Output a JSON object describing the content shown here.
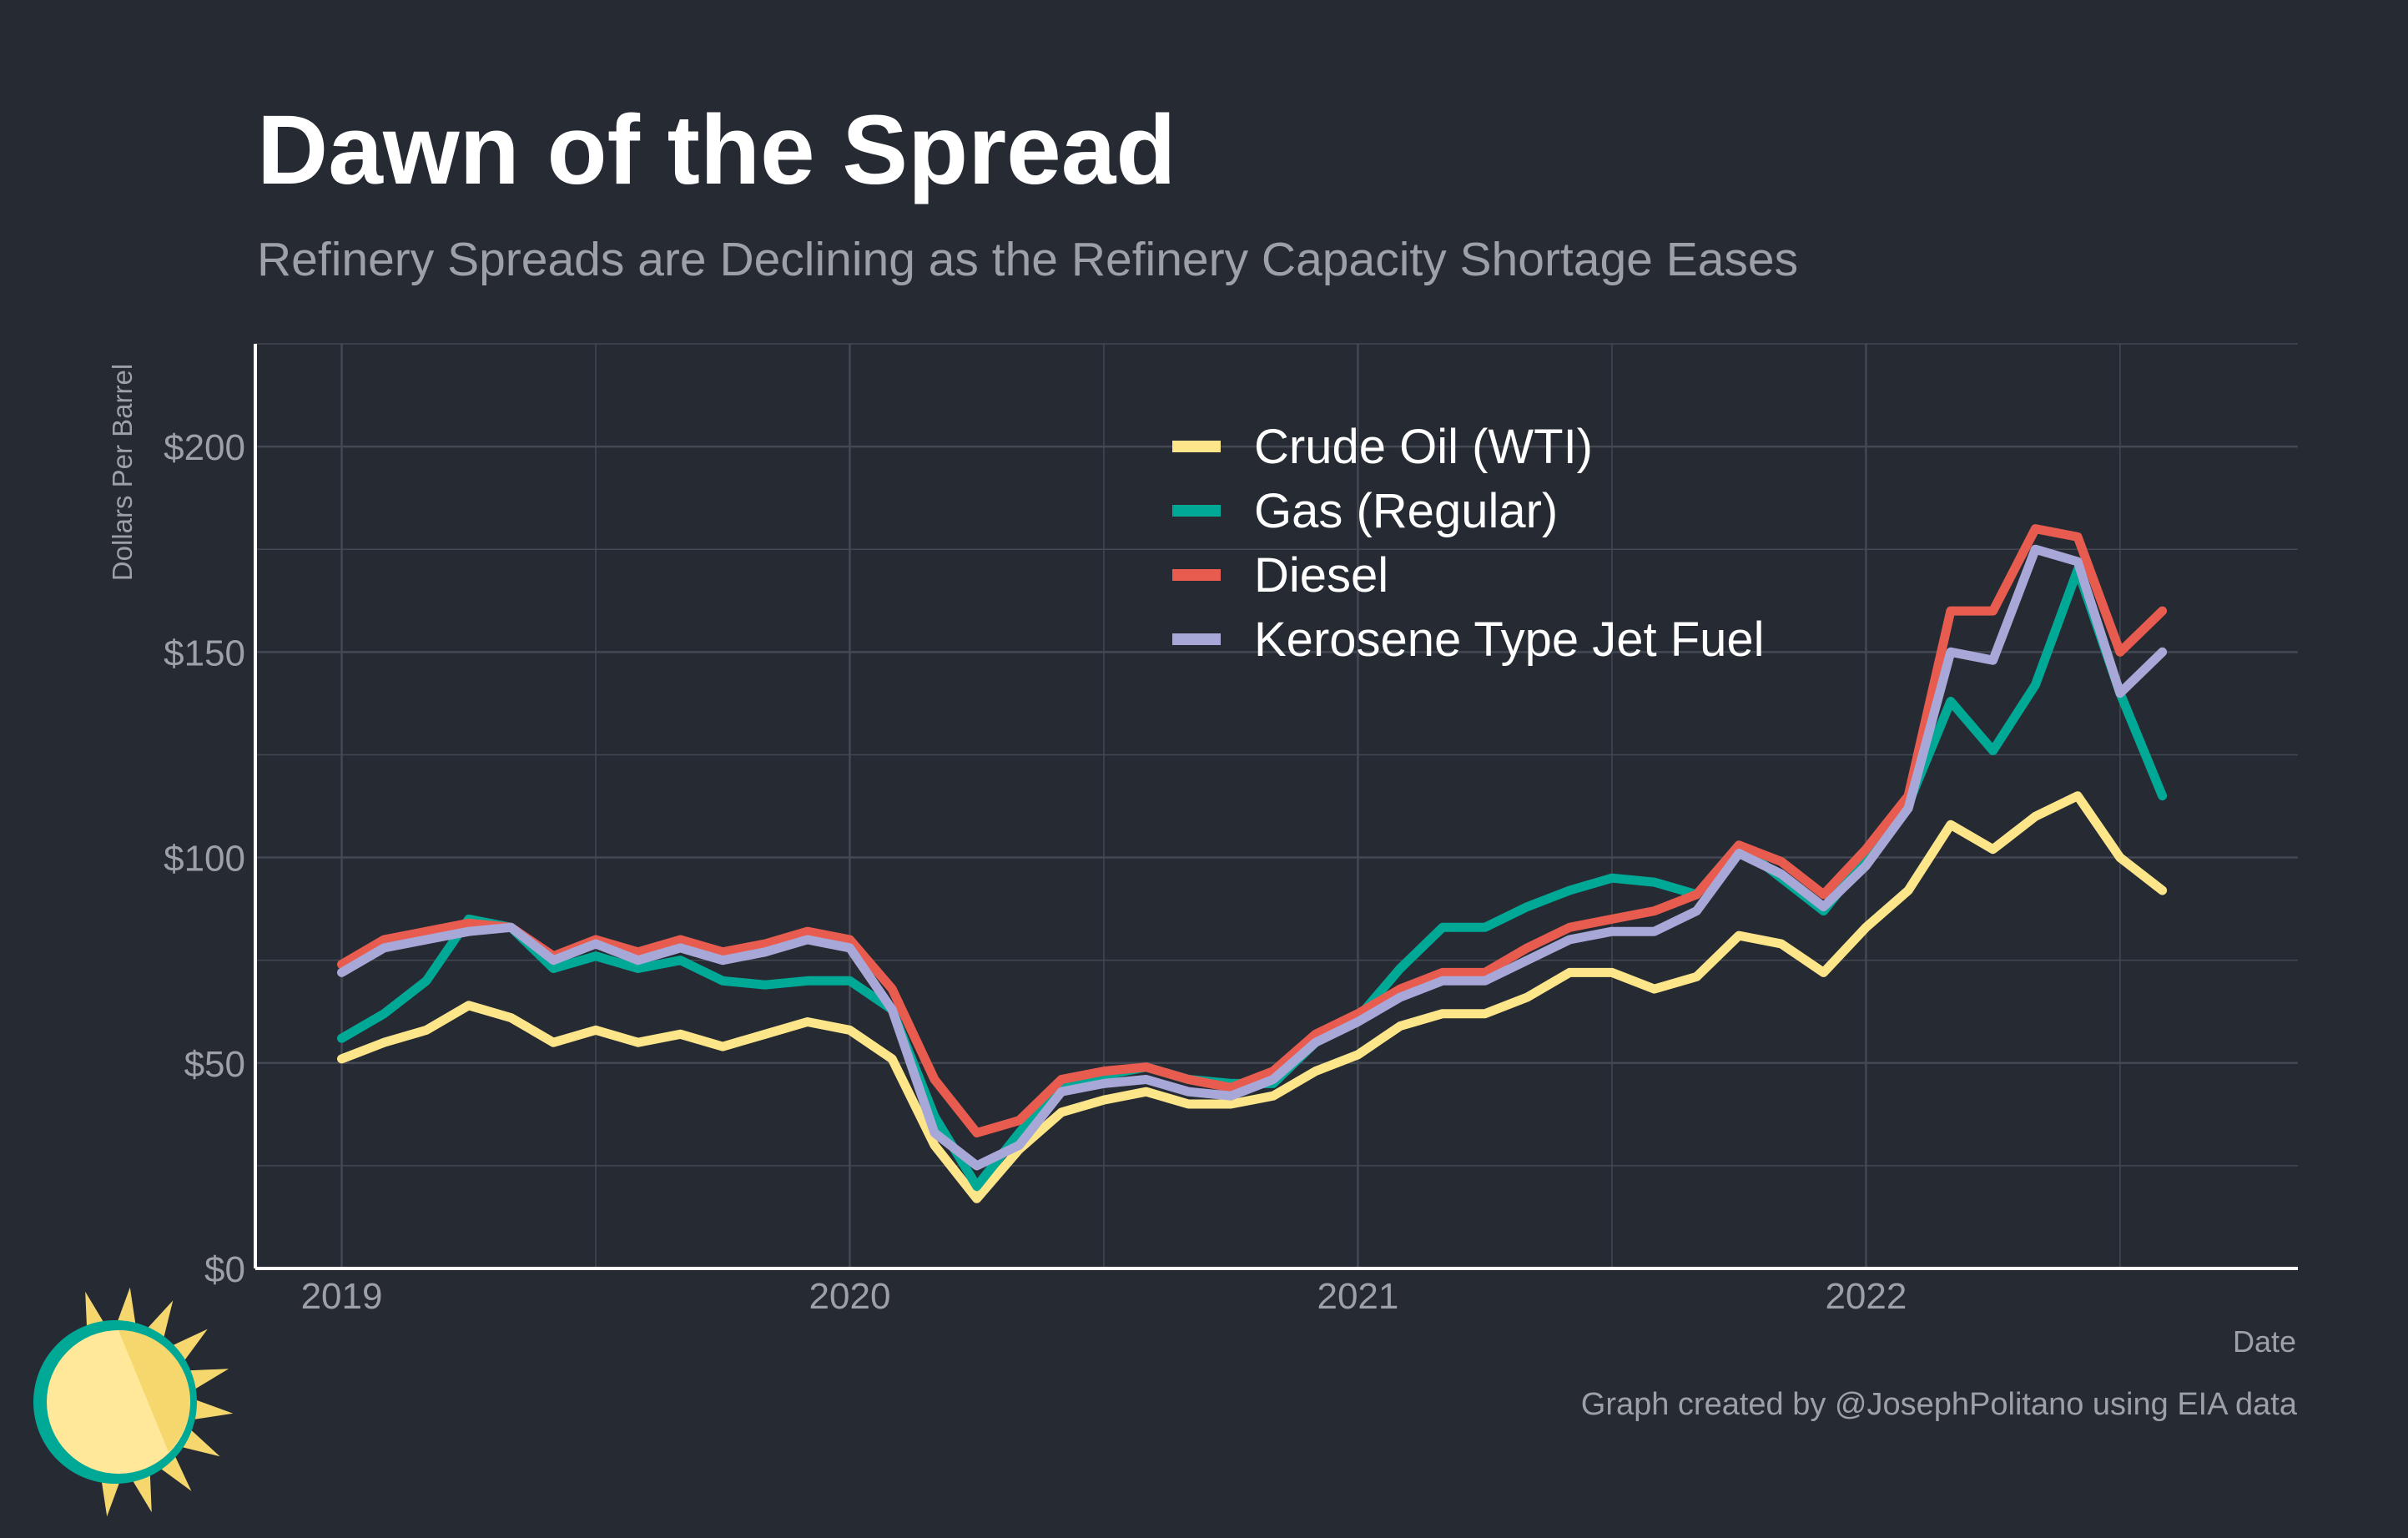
{
  "title": "Dawn of the Spread",
  "subtitle": "Refinery Spreads are Declining as the Refinery Capacity Shortage Eases",
  "caption": "Graph created by @JosephPolitano using EIA data",
  "colors": {
    "background": "#252a33",
    "grid": "#434853",
    "axis": "#ffffff",
    "muted_text": "#9da0a6"
  },
  "logo_icon": "sun-icon",
  "chart_data": {
    "type": "line",
    "title": "Dawn of the Spread",
    "subtitle": "Refinery Spreads are Declining as the Refinery Capacity Shortage Eases",
    "xlabel": "Date",
    "ylabel": "Dollars Per Barrel",
    "x_ticks": [
      "2019",
      "2020",
      "2021",
      "2022"
    ],
    "y_ticks": [
      "$0",
      "$50",
      "$100",
      "$150",
      "$200"
    ],
    "y_tick_values": [
      0,
      50,
      100,
      150,
      200
    ],
    "xlim": [
      2018.83,
      2022.85
    ],
    "ylim": [
      0,
      225
    ],
    "grid": true,
    "legend_position": "top-center",
    "x": [
      "2019-01",
      "2019-02",
      "2019-03",
      "2019-04",
      "2019-05",
      "2019-06",
      "2019-07",
      "2019-08",
      "2019-09",
      "2019-10",
      "2019-11",
      "2019-12",
      "2020-01",
      "2020-02",
      "2020-03",
      "2020-04",
      "2020-05",
      "2020-06",
      "2020-07",
      "2020-08",
      "2020-09",
      "2020-10",
      "2020-11",
      "2020-12",
      "2021-01",
      "2021-02",
      "2021-03",
      "2021-04",
      "2021-05",
      "2021-06",
      "2021-07",
      "2021-08",
      "2021-09",
      "2021-10",
      "2021-11",
      "2021-12",
      "2022-01",
      "2022-02",
      "2022-03",
      "2022-04",
      "2022-05",
      "2022-06",
      "2022-07",
      "2022-08"
    ],
    "series": [
      {
        "name": "Crude Oil (WTI)",
        "color": "#fde68a",
        "values": [
          51,
          55,
          58,
          64,
          61,
          55,
          58,
          55,
          57,
          54,
          57,
          60,
          58,
          51,
          30,
          17,
          29,
          38,
          41,
          43,
          40,
          40,
          42,
          48,
          52,
          59,
          62,
          62,
          66,
          72,
          72,
          68,
          71,
          81,
          79,
          72,
          83,
          92,
          108,
          102,
          110,
          115,
          100,
          92
        ]
      },
      {
        "name": "Gas (Regular)",
        "color": "#00a896",
        "values": [
          56,
          62,
          70,
          85,
          83,
          73,
          76,
          73,
          75,
          70,
          69,
          70,
          70,
          63,
          37,
          20,
          33,
          45,
          47,
          49,
          46,
          45,
          45,
          55,
          61,
          73,
          83,
          83,
          88,
          92,
          95,
          94,
          91,
          103,
          95,
          87,
          100,
          113,
          138,
          126,
          142,
          170,
          140,
          115
        ]
      },
      {
        "name": "Diesel",
        "color": "#e85c4f",
        "values": [
          74,
          80,
          82,
          84,
          83,
          76,
          80,
          77,
          80,
          77,
          79,
          82,
          80,
          68,
          46,
          33,
          36,
          46,
          48,
          49,
          46,
          44,
          48,
          57,
          62,
          68,
          72,
          72,
          78,
          83,
          85,
          87,
          91,
          103,
          99,
          91,
          102,
          115,
          160,
          160,
          180,
          178,
          150,
          160
        ]
      },
      {
        "name": "Kerosene Type Jet Fuel",
        "color": "#a8a8d8",
        "values": [
          72,
          78,
          80,
          82,
          83,
          75,
          79,
          75,
          78,
          75,
          77,
          80,
          78,
          63,
          33,
          25,
          30,
          43,
          45,
          46,
          43,
          42,
          46,
          55,
          60,
          66,
          70,
          70,
          75,
          80,
          82,
          82,
          87,
          101,
          96,
          88,
          98,
          112,
          150,
          148,
          175,
          172,
          140,
          150
        ]
      }
    ]
  }
}
